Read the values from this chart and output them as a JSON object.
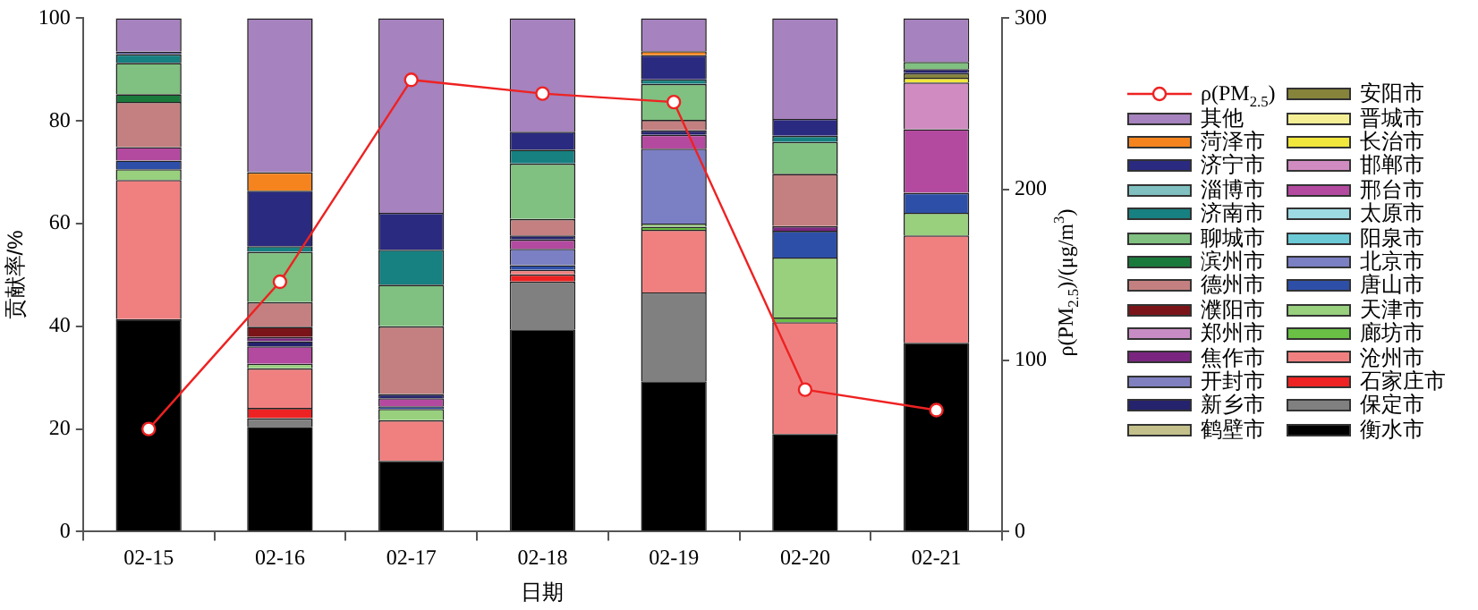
{
  "chart_data": {
    "type": "bar",
    "stacked": true,
    "xlabel": "日期",
    "ylabel": "贡献率/%",
    "y2label": "ρ(PM$_{2.5}$)/(μg/m$^{3}$)",
    "categories": [
      "02-15",
      "02-16",
      "02-17",
      "02-18",
      "02-19",
      "02-20",
      "02-21"
    ],
    "ylim": [
      0,
      100
    ],
    "yticks": [
      0,
      20,
      40,
      60,
      80,
      100
    ],
    "y2lim": [
      0,
      300
    ],
    "y2ticks": [
      0,
      100,
      200,
      300
    ],
    "grid": false,
    "legend": "right",
    "series": [
      {
        "name": "ρ(PM$_{2.5}$)",
        "type": "line",
        "axis": "y2",
        "marker": "circle",
        "color": "#ee2222",
        "values": [
          60,
          146,
          264,
          256,
          251,
          83,
          71
        ]
      },
      {
        "name": "衡水市",
        "color": "#000000",
        "values": [
          41.4,
          20.4,
          13.8,
          39.4,
          29.3,
          19.0,
          36.8
        ]
      },
      {
        "name": "保定市",
        "color": "#808080",
        "values": [
          null,
          1.7,
          null,
          9.3,
          17.3,
          null,
          null
        ]
      },
      {
        "name": "石家庄市",
        "color": "#ee2222",
        "values": [
          null,
          2.0,
          null,
          1.4,
          null,
          null,
          null
        ]
      },
      {
        "name": "沧州市",
        "color": "#f08080",
        "values": [
          27.1,
          7.7,
          7.9,
          0.9,
          12.2,
          21.8,
          20.9
        ]
      },
      {
        "name": "廊坊市",
        "color": "#6abf45",
        "values": [
          null,
          null,
          null,
          null,
          0.6,
          0.9,
          null
        ]
      },
      {
        "name": "天津市",
        "color": "#98d07e",
        "values": [
          2.1,
          0.9,
          2.2,
          null,
          0.6,
          11.7,
          4.4
        ]
      },
      {
        "name": "唐山市",
        "color": "#2e4fa8",
        "values": [
          1.7,
          null,
          0.5,
          0.9,
          null,
          5.2,
          3.9
        ]
      },
      {
        "name": "北京市",
        "color": "#7b7fc4",
        "values": [
          null,
          null,
          null,
          3.2,
          14.6,
          null,
          null
        ]
      },
      {
        "name": "阳泉市",
        "color": "#6cc9d6",
        "values": [
          null,
          null,
          null,
          null,
          null,
          null,
          null
        ]
      },
      {
        "name": "太原市",
        "color": "#9dd9e3",
        "values": [
          null,
          null,
          null,
          null,
          null,
          null,
          null
        ]
      },
      {
        "name": "邢台市",
        "color": "#b44aa0",
        "values": [
          2.6,
          3.4,
          1.6,
          1.8,
          2.7,
          null,
          12.4
        ]
      },
      {
        "name": "邯郸市",
        "color": "#d08cc0",
        "values": [
          null,
          null,
          null,
          null,
          null,
          null,
          9.1
        ]
      },
      {
        "name": "长治市",
        "color": "#f0e63c",
        "values": [
          null,
          null,
          null,
          null,
          null,
          null,
          0.9
        ]
      },
      {
        "name": "晋城市",
        "color": "#f4ef94",
        "values": [
          null,
          null,
          null,
          null,
          null,
          null,
          null
        ]
      },
      {
        "name": "安阳市",
        "color": "#86843a",
        "values": [
          null,
          null,
          null,
          null,
          null,
          null,
          0.9
        ]
      },
      {
        "name": "鹤壁市",
        "color": "#c4c08c",
        "values": [
          null,
          null,
          null,
          null,
          null,
          null,
          null
        ]
      },
      {
        "name": "新乡市",
        "color": "#25226e",
        "values": [
          null,
          1.0,
          0.8,
          0.8,
          0.9,
          null,
          0.8
        ]
      },
      {
        "name": "开封市",
        "color": "#8080c0",
        "values": [
          null,
          null,
          null,
          null,
          null,
          null,
          null
        ]
      },
      {
        "name": "焦作市",
        "color": "#7a2680",
        "values": [
          null,
          0.8,
          null,
          null,
          null,
          0.9,
          null
        ]
      },
      {
        "name": "郑州市",
        "color": "#c88cc4",
        "values": [
          null,
          null,
          null,
          null,
          null,
          null,
          null
        ]
      },
      {
        "name": "濮阳市",
        "color": "#7a1419",
        "values": [
          null,
          2.0,
          null,
          null,
          null,
          null,
          null
        ]
      },
      {
        "name": "德州市",
        "color": "#c48080",
        "values": [
          8.8,
          4.8,
          13.2,
          3.2,
          2.0,
          10.2,
          null
        ]
      },
      {
        "name": "滨州市",
        "color": "#1a7a3c",
        "values": [
          1.5,
          null,
          null,
          null,
          null,
          null,
          null
        ]
      },
      {
        "name": "聊城市",
        "color": "#80c080",
        "values": [
          6.1,
          9.8,
          8.1,
          10.8,
          7.0,
          6.2,
          1.4
        ]
      },
      {
        "name": "济南市",
        "color": "#178080",
        "values": [
          1.7,
          1.1,
          6.8,
          2.7,
          0.9,
          1.2,
          null
        ]
      },
      {
        "name": "淄博市",
        "color": "#80c0c0",
        "values": [
          null,
          null,
          null,
          null,
          null,
          null,
          null
        ]
      },
      {
        "name": "济宁市",
        "color": "#2a2a80",
        "values": [
          0.5,
          10.8,
          7.2,
          3.5,
          4.7,
          3.3,
          null
        ]
      },
      {
        "name": "菏泽市",
        "color": "#f5841f",
        "values": [
          null,
          3.6,
          null,
          null,
          0.8,
          null,
          null
        ]
      },
      {
        "name": "其他",
        "color": "#a682be",
        "values": [
          6.5,
          30.0,
          37.9,
          22.1,
          6.4,
          19.6,
          8.5
        ]
      }
    ]
  }
}
